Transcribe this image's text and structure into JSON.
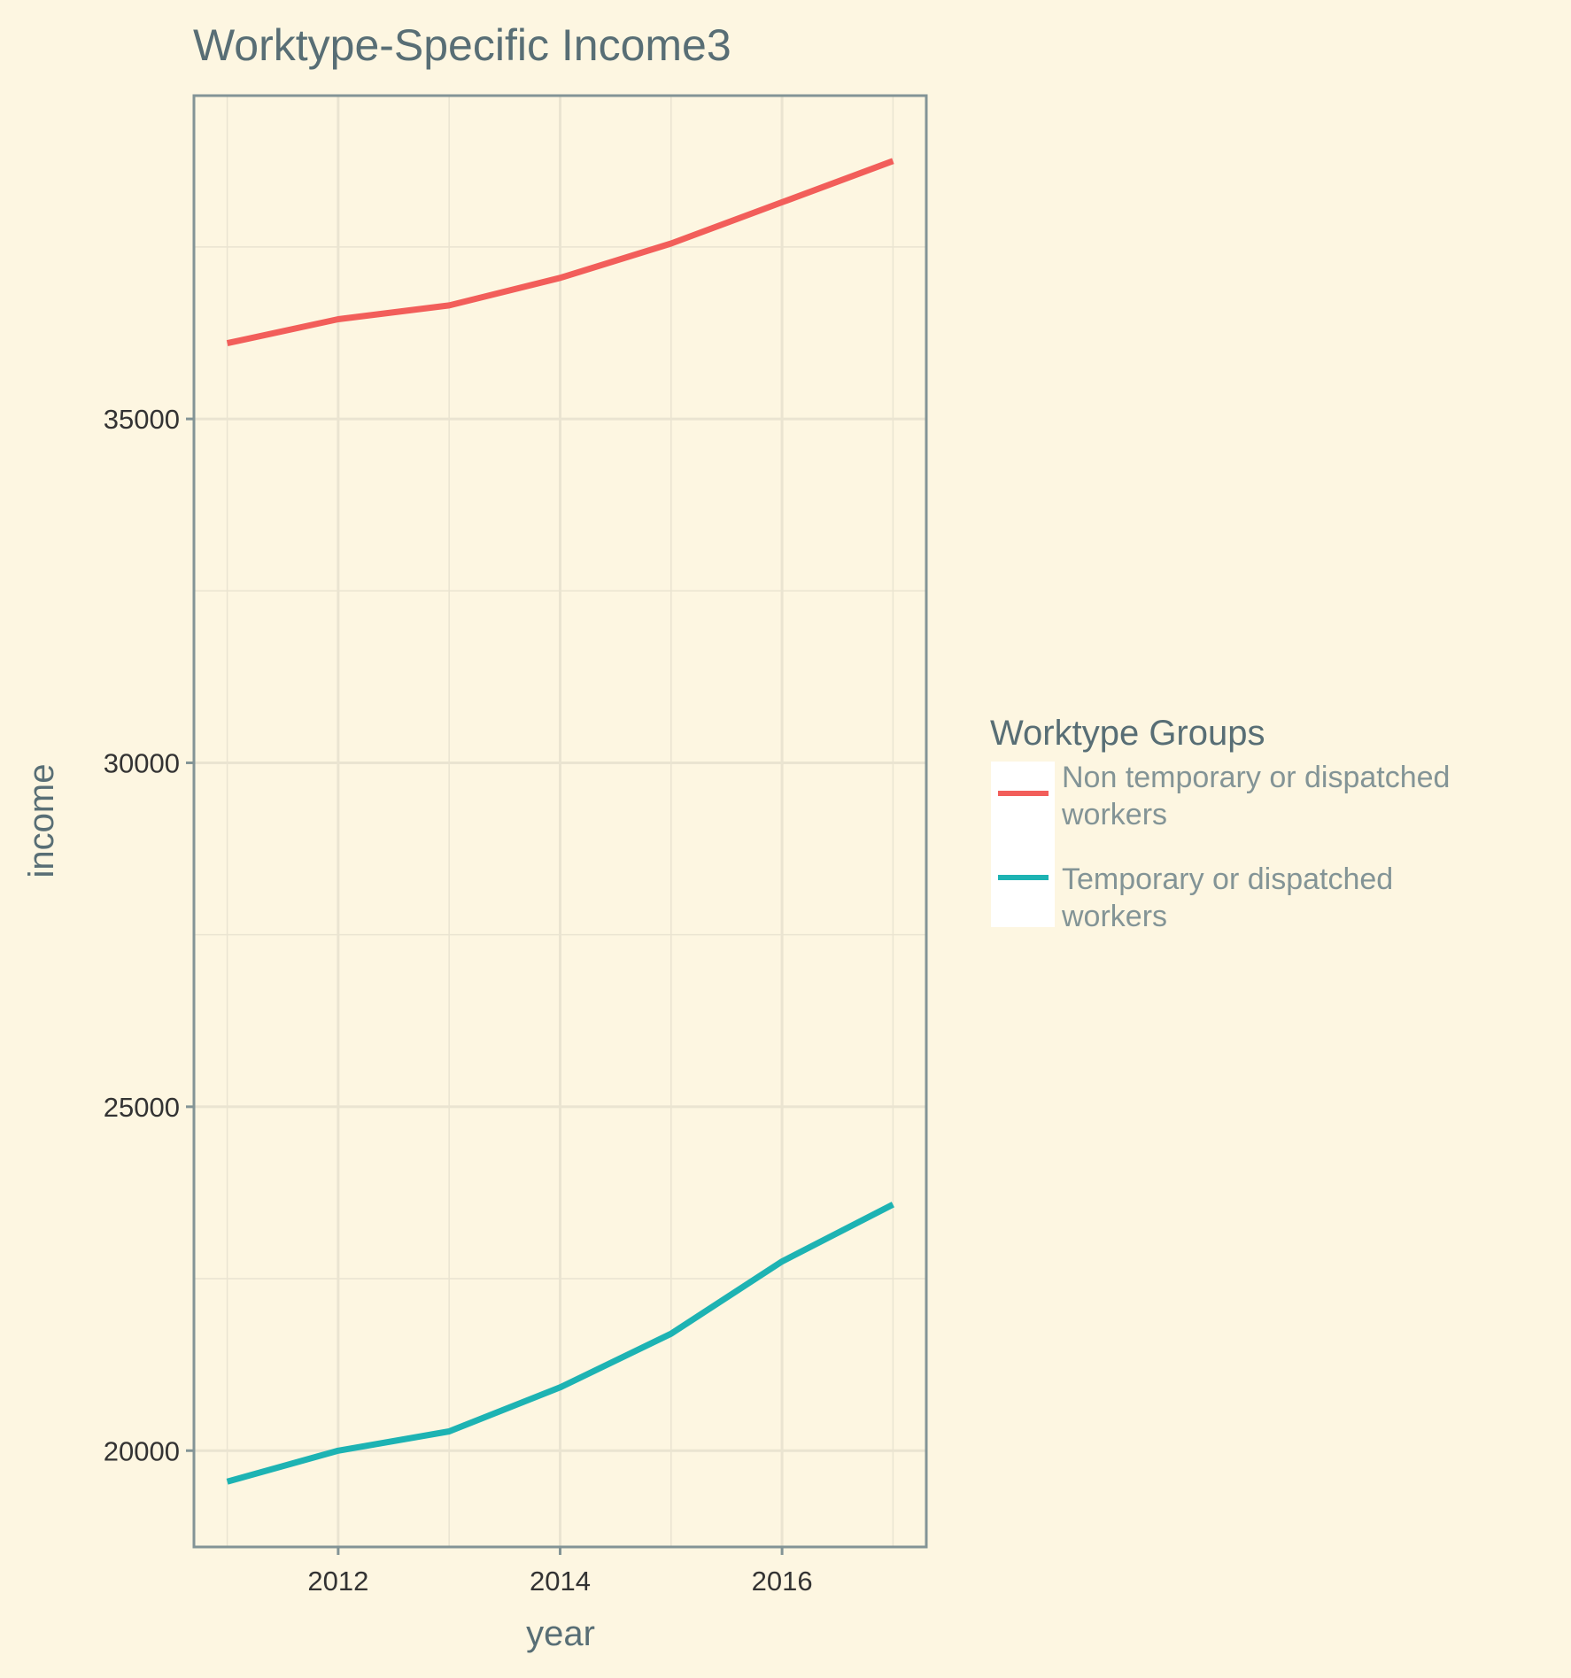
{
  "chart_data": {
    "type": "line",
    "title": "Worktype-Specific Income3",
    "xlabel": "year",
    "ylabel": "income",
    "x": [
      2011,
      2012,
      2013,
      2014,
      2015,
      2016,
      2017
    ],
    "x_ticks": [
      2012,
      2014,
      2016
    ],
    "x_tick_labels": [
      "2012",
      "2014",
      "2016"
    ],
    "xlim": [
      2010.7,
      2017.3
    ],
    "y_ticks": [
      20000,
      25000,
      30000,
      35000
    ],
    "y_tick_labels": [
      "20000",
      "25000",
      "30000",
      "35000"
    ],
    "ylim": [
      18600,
      39700
    ],
    "grid": true,
    "legend": {
      "title": "Worktype Groups",
      "position": "right"
    },
    "series": [
      {
        "name": "Non temporary or dispatched workers",
        "label_lines": [
          "Non temporary or dispatched",
          "workers"
        ],
        "color": "#F25E5A",
        "values": [
          36100,
          36450,
          36650,
          37050,
          37550,
          38150,
          38750
        ]
      },
      {
        "name": "Temporary or dispatched workers",
        "label_lines": [
          "Temporary or dispatched",
          "workers"
        ],
        "color": "#1DB3B3",
        "values": [
          19550,
          20000,
          20280,
          20920,
          21700,
          22750,
          23580
        ]
      }
    ]
  },
  "colors": {
    "background": "#FDF6E1",
    "grid": "#EAE4D1",
    "axis": "#839496",
    "title": "#586E75",
    "legend_label": "#839496"
  }
}
